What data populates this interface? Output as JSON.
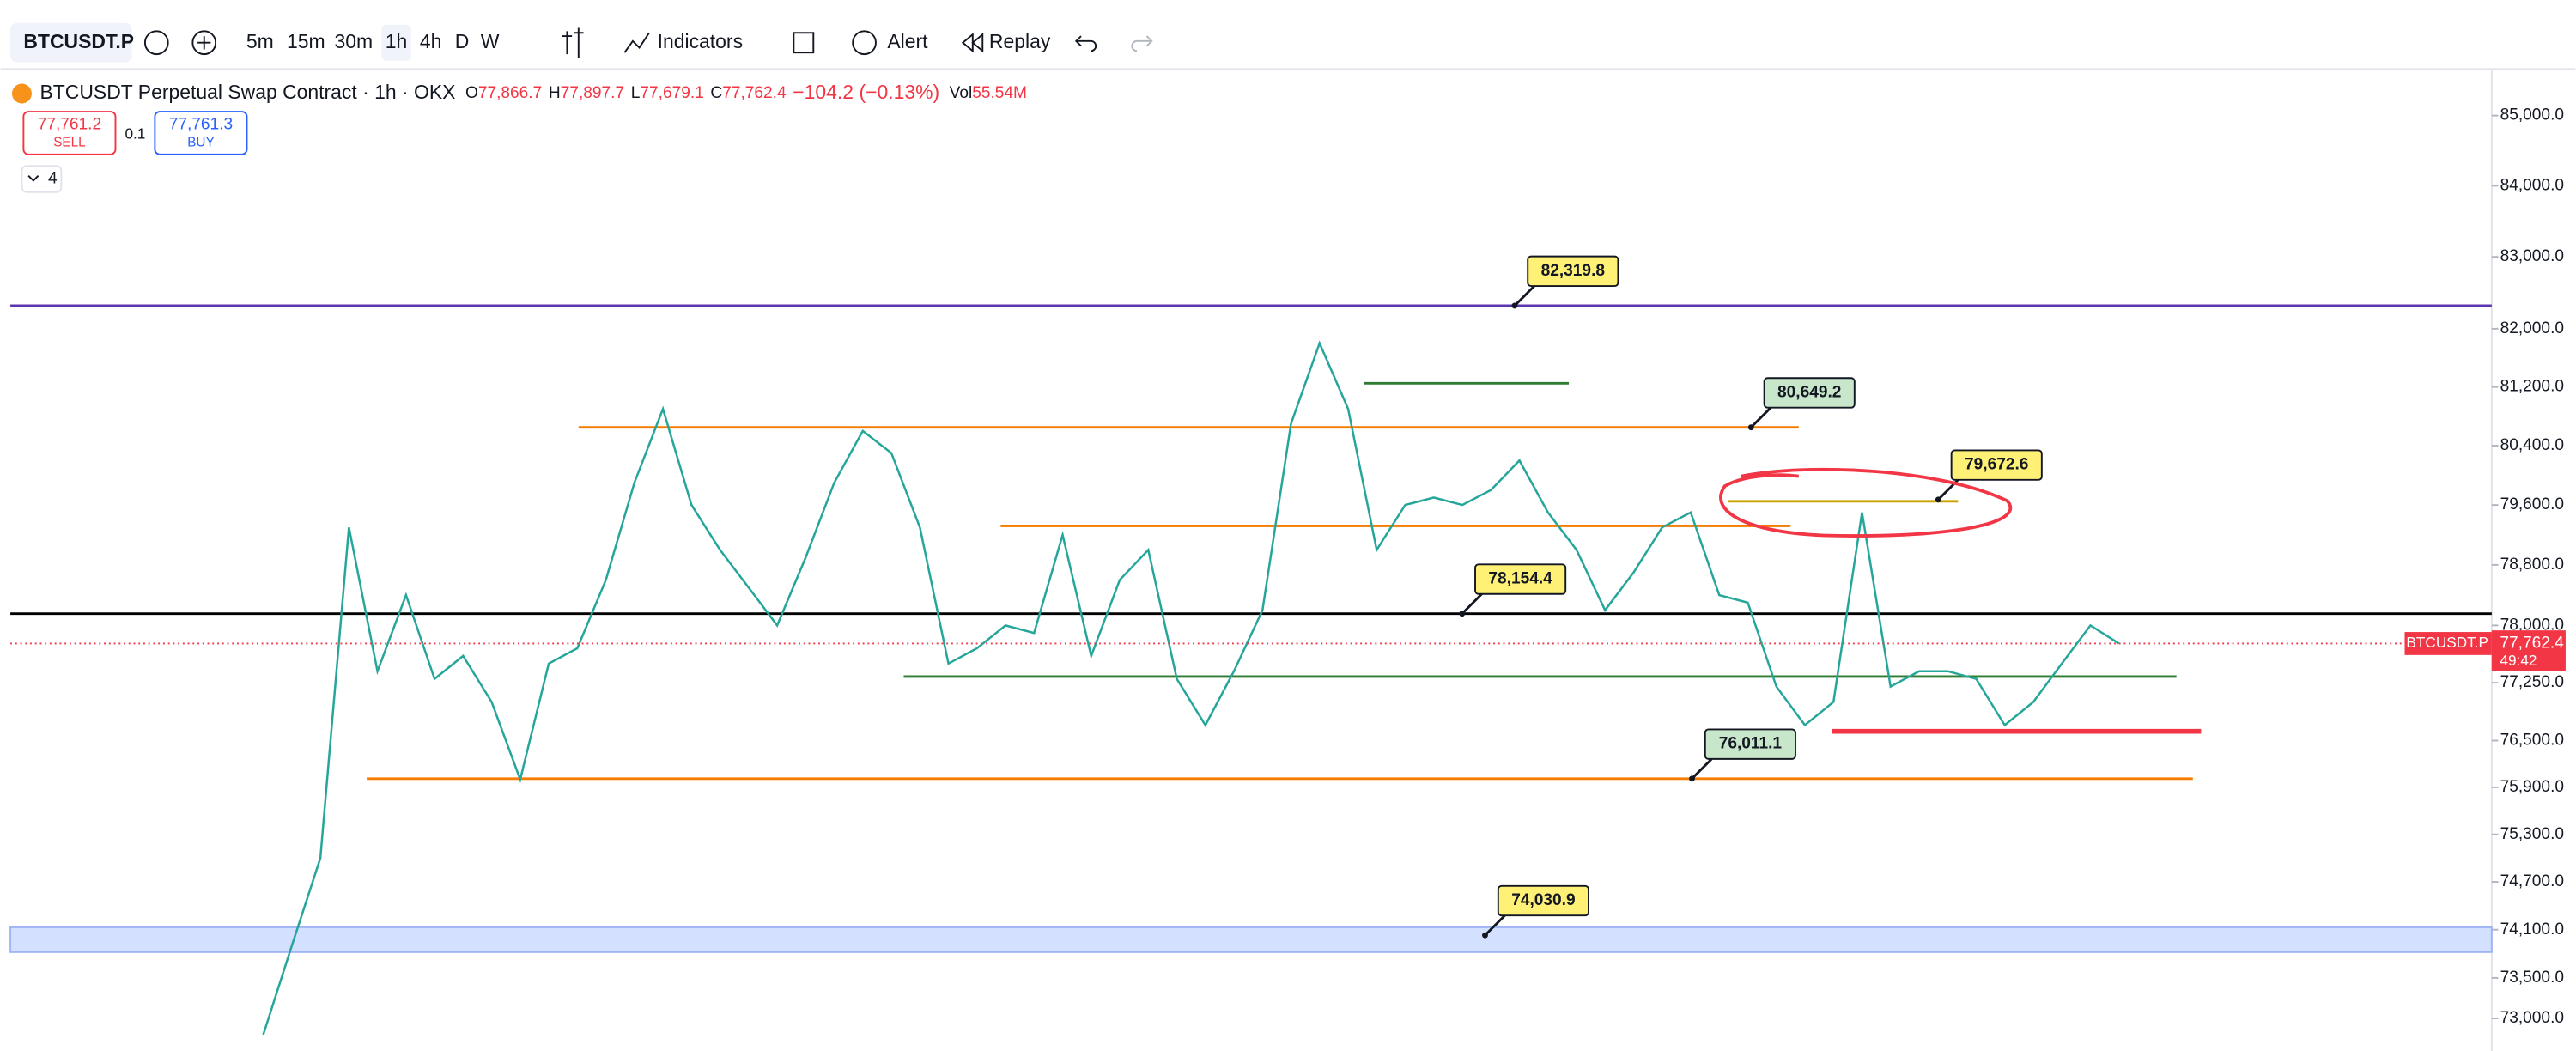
{
  "toolbar": {
    "symbol": "BTCUSDT.P",
    "intervals": [
      "5m",
      "15m",
      "30m",
      "1h",
      "4h",
      "D",
      "W"
    ],
    "active_interval": "1h",
    "indicators": "Indicators",
    "alert": "Alert",
    "replay": "Replay"
  },
  "legend": {
    "title": "BTCUSDT Perpetual Swap Contract · 1h · OKX",
    "ohlc": [
      [
        "O",
        "77,866.7"
      ],
      [
        "H",
        "77,897.7"
      ],
      [
        "L",
        "77,679.1"
      ],
      [
        "C",
        "77,762.4"
      ]
    ],
    "change": "−104.2 (−0.13%)",
    "vol_label": "Vol",
    "vol": "55.54M",
    "collapse": "4"
  },
  "trade": {
    "sell_price": "77,761.2",
    "sell": "SELL",
    "qty": "0.1",
    "buy_price": "77,761.3",
    "buy": "BUY"
  },
  "chart_data": {
    "type": "line",
    "log_scale": true,
    "color": "#26a69a",
    "ylim": [
      72600,
      85600
    ],
    "yticks": [
      {
        "value": 85000,
        "label": "85,000.0"
      },
      {
        "value": 84000,
        "label": "84,000.0"
      },
      {
        "value": 83000,
        "label": "83,000.0"
      },
      {
        "value": 82000,
        "label": "82,000.0"
      },
      {
        "value": 81200,
        "label": "81,200.0"
      },
      {
        "value": 80400,
        "label": "80,400.0"
      },
      {
        "value": 79600,
        "label": "79,600.0"
      },
      {
        "value": 78800,
        "label": "78,800.0"
      },
      {
        "value": 78000,
        "label": "78,000.0"
      },
      {
        "value": 77250,
        "label": "77,250.0"
      },
      {
        "value": 76500,
        "label": "76,500.0"
      },
      {
        "value": 75900,
        "label": "75,900.0"
      },
      {
        "value": 75300,
        "label": "75,300.0"
      },
      {
        "value": 74700,
        "label": "74,700.0"
      },
      {
        "value": 74100,
        "label": "74,100.0"
      },
      {
        "value": 73500,
        "label": "73,500.0"
      },
      {
        "value": 73000,
        "label": "73,000.0"
      }
    ],
    "values": [
      72800,
      73900,
      75000,
      79300,
      77400,
      78400,
      77300,
      77600,
      77000,
      76000,
      77500,
      77700,
      78600,
      79900,
      80900,
      79600,
      79000,
      78500,
      78000,
      78900,
      79900,
      80600,
      80300,
      79300,
      77500,
      77700,
      78000,
      77900,
      79200,
      77600,
      78600,
      79000,
      77300,
      76700,
      77400,
      78200,
      80700,
      81800,
      80900,
      79000,
      79600,
      79700,
      79600,
      79800,
      80200,
      79500,
      79000,
      78200,
      78700,
      79300,
      79500,
      78400,
      78300,
      77200,
      76700,
      77000,
      79500,
      77200,
      77400,
      77400,
      77300,
      76700,
      77000,
      77500,
      78000,
      77762.4
    ],
    "annotations": [
      {
        "value": 82319.8,
        "label": "82,319.8",
        "color": "#fff176"
      },
      {
        "value": 80649.2,
        "label": "80,649.2",
        "color": "#c8e6c9"
      },
      {
        "value": 79672.6,
        "label": "79,672.6",
        "color": "#fff176"
      },
      {
        "value": 78154.4,
        "label": "78,154.4",
        "color": "#fff176"
      },
      {
        "value": 76011.1,
        "label": "76,011.1",
        "color": "#c8e6c9"
      },
      {
        "value": 74030.9,
        "label": "74,030.9",
        "color": "#fff176"
      }
    ],
    "levels": [
      {
        "value": 82319.8,
        "color": "#5e35b1"
      },
      {
        "value": 80649.2,
        "color": "#f57c00"
      },
      {
        "value": 79320,
        "color": "#f57c00"
      },
      {
        "value": 81250,
        "color": "#2e7d32"
      },
      {
        "value": 78154.4,
        "color": "#000000"
      },
      {
        "value": 77330,
        "color": "#2e7d32"
      },
      {
        "value": 76620,
        "color": "#f23645"
      },
      {
        "value": 76011.1,
        "color": "#f57c00"
      },
      {
        "value": 79650,
        "color": "#c9a400"
      }
    ],
    "zone": [
      73820,
      74130
    ],
    "price_tag": {
      "value": 77762.4,
      "label": "77,762.4",
      "countdown": "49:42",
      "symbol": "BTCUSDT.P"
    }
  }
}
